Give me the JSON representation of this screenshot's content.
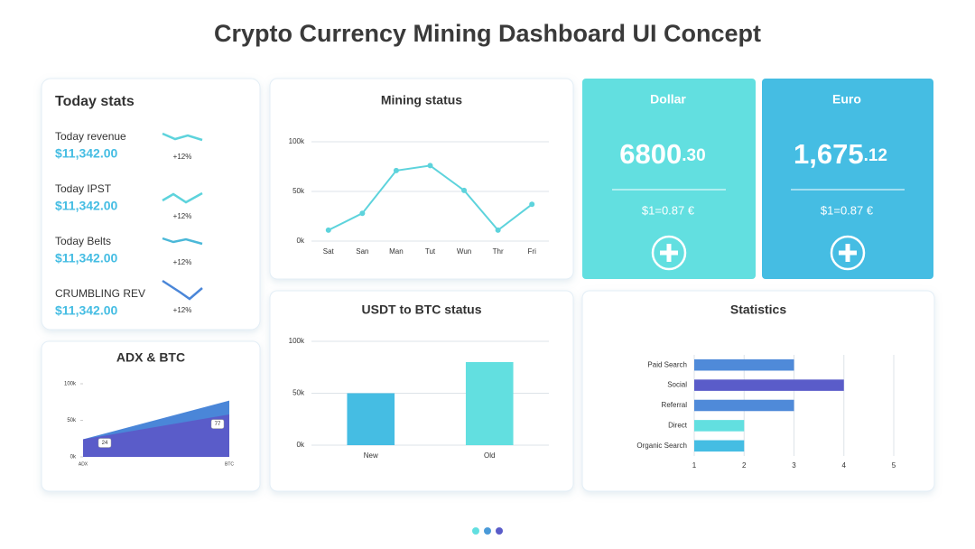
{
  "title": "Crypto Currency Mining Dashboard UI Concept",
  "today_stats": {
    "title": "Today stats",
    "items": [
      {
        "label": "Today revenue",
        "value": "$11,342.00",
        "change": "+12%"
      },
      {
        "label": "Today IPST",
        "value": "$11,342.00",
        "change": "+12%"
      },
      {
        "label": "Today Belts",
        "value": "$11,342.00",
        "change": "+12%"
      },
      {
        "label": "CRUMBLING REV",
        "value": "$11,342.00",
        "change": "+12%"
      }
    ]
  },
  "currencies": [
    {
      "name": "Dollar",
      "amount": "6800",
      "decimals": ".30",
      "rate": "$1=0.87 €"
    },
    {
      "name": "Euro",
      "amount": "1,675",
      "decimals": ".12",
      "rate": "$1=0.87 €"
    }
  ],
  "chart_data": [
    {
      "type": "line",
      "title": "Mining status",
      "categories": [
        "Sat",
        "San",
        "Man",
        "Tut",
        "Wun",
        "Thr",
        "Fri"
      ],
      "values": [
        11000,
        28000,
        71000,
        76000,
        51000,
        11000,
        37000
      ],
      "color": "#5dd3dc",
      "ylim": [
        0,
        100000
      ],
      "yticks": [
        {
          "value": 0,
          "label": "0k"
        },
        {
          "value": 50000,
          "label": "50k"
        },
        {
          "value": 100000,
          "label": "100k"
        }
      ],
      "grid": true
    },
    {
      "type": "bar",
      "title": "USDT to BTC status",
      "categories": [
        "New",
        "Old"
      ],
      "values": [
        50000,
        80000
      ],
      "colors": [
        "#45bde3",
        "#62dfe0"
      ],
      "ylim": [
        0,
        100000
      ],
      "yticks": [
        {
          "value": 0,
          "label": "0k"
        },
        {
          "value": 50000,
          "label": "50k"
        },
        {
          "value": 100000,
          "label": "100k"
        }
      ],
      "grid": true
    },
    {
      "type": "barh",
      "title": "Statistics",
      "categories": [
        "Paid Search",
        "Social",
        "Referral",
        "Direct",
        "Organic Search"
      ],
      "values": [
        3,
        4,
        3,
        2,
        2
      ],
      "colors": [
        "#4f8ad9",
        "#5a5cc9",
        "#4f8ad9",
        "#62dfe0",
        "#45bde3"
      ],
      "xlim": [
        1,
        5
      ],
      "xticks": [
        1,
        2,
        3,
        4,
        5
      ],
      "grid": true
    },
    {
      "type": "area",
      "title": "ADX & BTC",
      "categories": [
        "ADX",
        "BTC"
      ],
      "series": [
        {
          "color": "#4a86d8",
          "values": [
            24000,
            77000
          ],
          "value_labels": [
            "24",
            "77"
          ]
        },
        {
          "color": "#5a5cc9",
          "values": [
            24000,
            58000
          ]
        }
      ],
      "ylim": [
        0,
        100000
      ],
      "yticks": [
        {
          "value": 0,
          "label": "0k"
        },
        {
          "value": 50000,
          "label": "50k"
        },
        {
          "value": 100000,
          "label": "100k"
        }
      ]
    }
  ]
}
